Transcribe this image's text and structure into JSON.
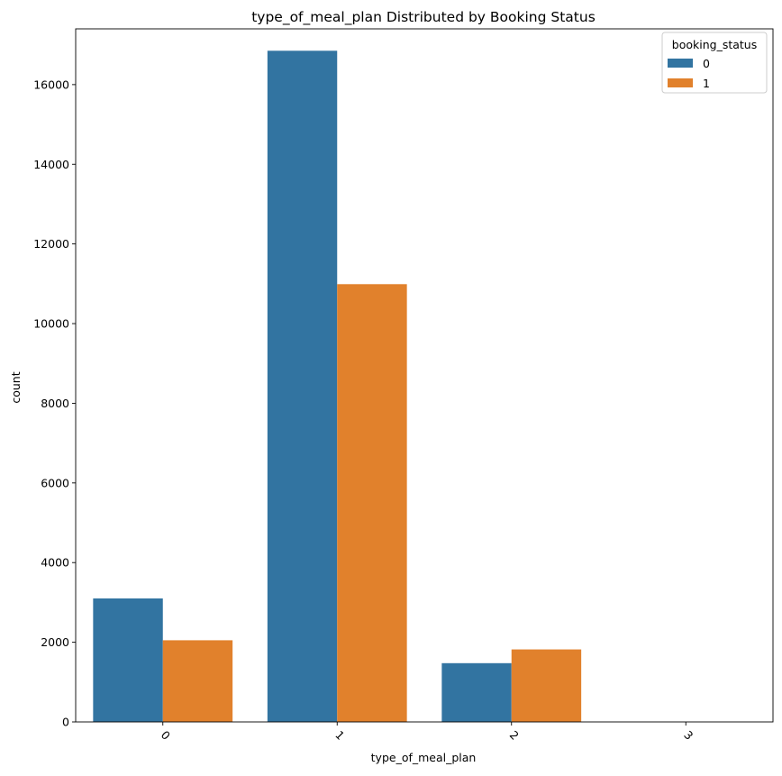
{
  "chart_data": {
    "type": "bar",
    "title": "type_of_meal_plan Distributed by Booking Status",
    "xlabel": "type_of_meal_plan",
    "ylabel": "count",
    "categories": [
      "0",
      "1",
      "2",
      "3"
    ],
    "series": [
      {
        "name": "0",
        "color": "#3274a1",
        "values": [
          3100,
          16850,
          1475,
          0
        ]
      },
      {
        "name": "1",
        "color": "#e1812c",
        "values": [
          2050,
          10990,
          1820,
          0
        ]
      }
    ],
    "ylim": [
      0,
      17400
    ],
    "yticks": [
      0,
      2000,
      4000,
      6000,
      8000,
      10000,
      12000,
      14000,
      16000
    ],
    "legend": {
      "title": "booking_status",
      "placement": "top-right"
    },
    "grid": false,
    "xtick_rotation": 45
  }
}
